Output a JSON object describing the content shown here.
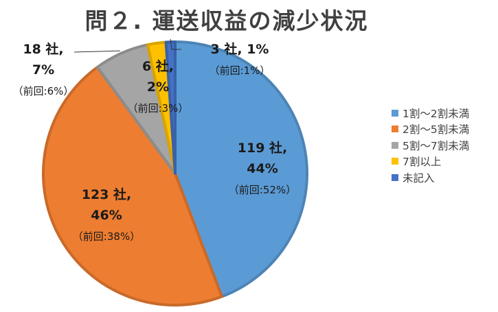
{
  "title": "問２. 運送収益の減少状況",
  "chart_data": {
    "type": "pie",
    "title": "問２. 運送収益の減少状況",
    "slices": [
      {
        "name": "1割〜2割未満",
        "count": 119,
        "percent": 44,
        "previous_percent": 52,
        "color": "#5b9bd5",
        "label": {
          "line1": "119 社,",
          "line2": "44%",
          "line3": "（前回:52%）"
        }
      },
      {
        "name": "2割〜5割未満",
        "count": 123,
        "percent": 46,
        "previous_percent": 38,
        "color": "#ed7d31",
        "label": {
          "line1": "123 社,",
          "line2": "46%",
          "line3": "（前回:38%）"
        }
      },
      {
        "name": "5割〜7割未満",
        "count": 18,
        "percent": 7,
        "previous_percent": 6,
        "color": "#a5a5a5",
        "label": {
          "line1": "18 社,",
          "line2": "7%",
          "line3": "（前回:6%）"
        }
      },
      {
        "name": "7割以上",
        "count": 6,
        "percent": 2,
        "previous_percent": 3,
        "color": "#ffc000",
        "label": {
          "line1": "6 社,",
          "line2": "2%",
          "line3": "（前回:3%）"
        }
      },
      {
        "name": "未記入",
        "count": 3,
        "percent": 1,
        "previous_percent": 1,
        "color": "#4472c4",
        "label": {
          "line1": "3 社, 1%",
          "line2": "（前回:1%）",
          "line3": ""
        }
      }
    ],
    "legend_position": "right"
  },
  "legend": [
    {
      "label": "1割〜2割未満",
      "color": "#5b9bd5"
    },
    {
      "label": "2割〜5割未満",
      "color": "#ed7d31"
    },
    {
      "label": "5割〜7割未満",
      "color": "#a5a5a5"
    },
    {
      "label": "7割以上",
      "color": "#ffc000"
    },
    {
      "label": "未記入",
      "color": "#4472c4"
    }
  ]
}
